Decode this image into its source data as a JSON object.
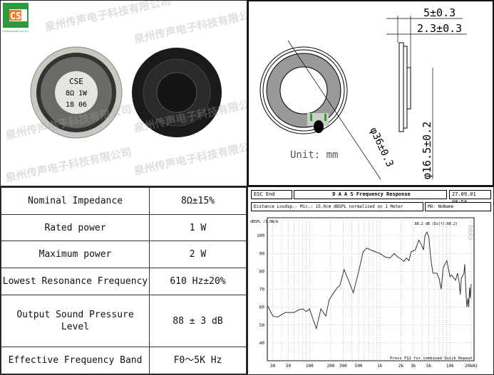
{
  "logo": {
    "letters": "CS",
    "tagline": "ChuanshengElectric"
  },
  "watermark": "泉州传声电子科技有限公司",
  "product_label": {
    "brand": "CSE",
    "rating": "8Ω  1W",
    "date": "18 06"
  },
  "drawing": {
    "depth_total": "5±0.3",
    "depth_front": "2.3±0.3",
    "diameter": "φ36±0.3",
    "magnet_diameter": "φ16.5±0.2",
    "unit": "Unit: mm"
  },
  "specs": [
    {
      "label": "Nominal Impedance",
      "value": "8Ω±15%"
    },
    {
      "label": "Rated power",
      "value": "1 W"
    },
    {
      "label": "Maximum power",
      "value": "2 W"
    },
    {
      "label": "Lowest Resonance Frequency",
      "value": "610 Hz±20%"
    },
    {
      "label": "Output Sound Pressure Level",
      "value": "88 ± 3 dB"
    },
    {
      "label": "Effective Frequency Band",
      "value": "F0～5K Hz"
    }
  ],
  "fr_header": {
    "esc": "ESC  End",
    "title": "D A A S   Frequency Response",
    "date": "27.09.01 08:58",
    "info": "Distance Loudsp.- Mic.: 15.0cm dBSPL normalized on 1 Meter",
    "name": "MO: NoName",
    "level": "88.2 dB (Di(f):88.2)",
    "footer": "Press F12 for combined Quick Repeat",
    "brand": "DAAS"
  },
  "chart_data": {
    "type": "line",
    "ylabel": "dBSPL /1.0W/m",
    "xscale": "log",
    "xlim": [
      25,
      22000
    ],
    "ylim": [
      30,
      110
    ],
    "yticks": [
      40,
      50,
      60,
      70,
      80,
      90,
      100
    ],
    "xticks": [
      {
        "v": 30,
        "l": "30"
      },
      {
        "v": 50,
        "l": "50"
      },
      {
        "v": 100,
        "l": "100"
      },
      {
        "v": 200,
        "l": "200"
      },
      {
        "v": 300,
        "l": "300"
      },
      {
        "v": 500,
        "l": "500"
      },
      {
        "v": 1000,
        "l": "1k"
      },
      {
        "v": 2000,
        "l": "2k"
      },
      {
        "v": 3000,
        "l": "3k"
      },
      {
        "v": 5000,
        "l": "5k"
      },
      {
        "v": 10000,
        "l": "10k"
      },
      {
        "v": 20000,
        "l": "20kHz"
      }
    ],
    "grid": true,
    "x": [
      25,
      30,
      35,
      45,
      60,
      70,
      80,
      90,
      100,
      110,
      125,
      145,
      170,
      190,
      220,
      250,
      270,
      310,
      350,
      420,
      500,
      580,
      650,
      800,
      1000,
      1200,
      1400,
      1600,
      1800,
      2000,
      2200,
      2400,
      2600,
      2800,
      3000,
      3200,
      3600,
      3900,
      4200,
      4400,
      4700,
      5000,
      5300,
      5700,
      6500,
      7000,
      7500,
      8000,
      9000,
      10000,
      10500,
      11000,
      12000,
      12800,
      13500,
      14000,
      14500,
      15800,
      16200,
      17000,
      17400,
      18000,
      18500,
      19000,
      19500,
      20000
    ],
    "y": [
      61,
      55,
      54.5,
      57,
      57,
      58.5,
      59,
      57.5,
      59,
      54,
      48,
      59,
      55,
      64,
      68,
      71,
      72,
      81,
      76,
      68,
      80,
      91,
      93,
      91.5,
      90,
      88,
      87.5,
      90,
      88,
      87,
      85.5,
      87.5,
      86,
      91,
      91.5,
      92,
      97.5,
      95,
      92,
      100,
      102,
      99,
      88,
      79,
      79,
      76,
      70,
      82,
      86,
      77,
      78,
      77,
      75,
      79,
      74,
      67,
      76,
      79,
      84,
      66,
      60,
      65,
      60,
      71,
      65,
      73
    ]
  }
}
